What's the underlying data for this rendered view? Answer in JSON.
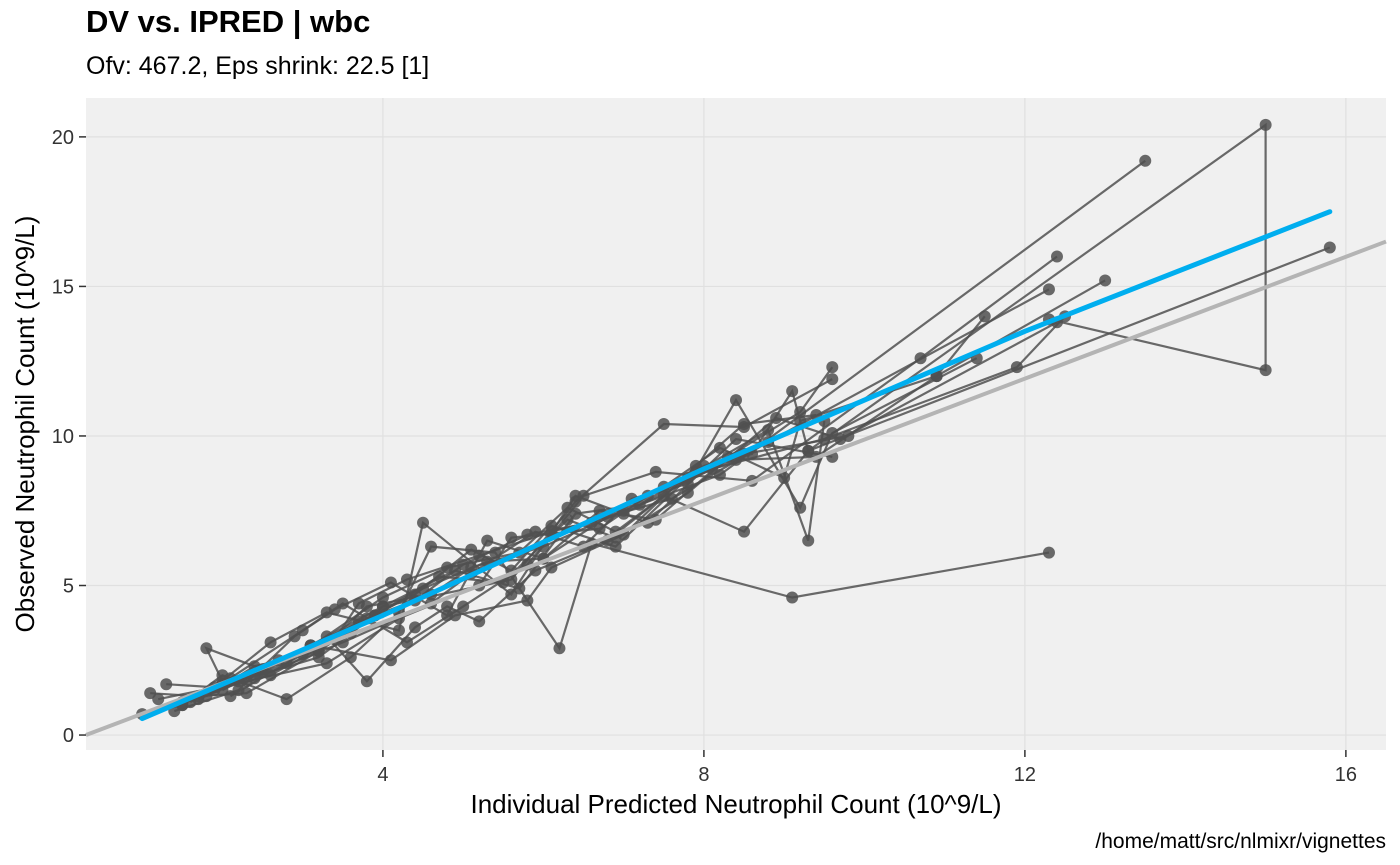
{
  "header": {
    "title": "DV vs. IPRED | wbc",
    "subtitle": "Ofv: 467.2, Eps shrink: 22.5 [1]",
    "caption": "/home/matt/src/nlmixr/vignettes"
  },
  "colors": {
    "panel_bg": "#f0f0f0",
    "grid": "#e0e0e0",
    "points": "#505050",
    "trend": "#00aeef",
    "identity": "#b4b4b4"
  },
  "chart_data": {
    "type": "scatter",
    "title": "DV vs. IPRED | wbc",
    "subtitle": "Ofv: 467.2, Eps shrink: 22.5 [1]",
    "xlabel": "Individual Predicted Neutrophil Count (10^9/L)",
    "ylabel": "Observed Neutrophil Count (10^9/L)",
    "xlim": [
      0.3,
      16.5
    ],
    "ylim": [
      -0.5,
      21.3
    ],
    "xticks": [
      4,
      8,
      12,
      16
    ],
    "yticks": [
      0,
      5,
      10,
      15,
      20
    ],
    "grid": true,
    "legend": "none",
    "subjects": [
      {
        "x": [
          1.5,
          2.0,
          1.8,
          2.5,
          3.1,
          4.0,
          5.6,
          6.4,
          7.5,
          8.5,
          9.6
        ],
        "y": [
          1.0,
          1.8,
          2.9,
          2.2,
          3.0,
          4.3,
          5.2,
          7.8,
          10.4,
          10.3,
          11.9
        ]
      },
      {
        "x": [
          1.1,
          1.7,
          2.3,
          3.2,
          3.8,
          4.6,
          5.1,
          6.0,
          7.0,
          8.2,
          13.5
        ],
        "y": [
          1.4,
          1.3,
          1.4,
          2.8,
          4.3,
          4.7,
          5.6,
          6.3,
          7.5,
          8.7,
          19.2
        ]
      },
      {
        "x": [
          1.0,
          1.5,
          2.0,
          2.8,
          3.6,
          4.2,
          4.6,
          5.4,
          6.2,
          6.6,
          9.1,
          12.3
        ],
        "y": [
          0.7,
          1.0,
          2.0,
          1.2,
          2.6,
          4.1,
          6.3,
          6.1,
          2.9,
          6.4,
          4.6,
          6.1
        ]
      },
      {
        "x": [
          1.3,
          1.9,
          2.6,
          3.3,
          4.2,
          4.5,
          5.6,
          6.4,
          7.3,
          8.4,
          9.6
        ],
        "y": [
          1.7,
          1.6,
          3.1,
          4.1,
          3.5,
          7.1,
          4.7,
          8.0,
          7.1,
          9.9,
          9.3
        ]
      },
      {
        "x": [
          1.6,
          2.1,
          3.0,
          3.5,
          4.3,
          5.0,
          5.8,
          6.5,
          7.4,
          8.6,
          10.7,
          12.4
        ],
        "y": [
          1.1,
          1.9,
          3.5,
          4.4,
          3.1,
          4.3,
          5.7,
          8.0,
          8.8,
          8.5,
          12.6,
          16.0
        ]
      },
      {
        "x": [
          1.8,
          2.4,
          3.2,
          3.8,
          4.4,
          5.1,
          5.6,
          6.1,
          6.9,
          7.8,
          8.5,
          9.8
        ],
        "y": [
          1.3,
          2.3,
          2.8,
          3.9,
          4.7,
          6.2,
          5.5,
          7.0,
          6.3,
          8.6,
          9.4,
          10.0
        ]
      },
      {
        "x": [
          1.4,
          2.2,
          2.9,
          3.4,
          4.1,
          4.8,
          5.3,
          6.0,
          6.8,
          7.6,
          8.8,
          12.3
        ],
        "y": [
          0.8,
          1.5,
          3.3,
          4.2,
          5.1,
          4.0,
          6.5,
          5.9,
          7.3,
          7.9,
          9.8,
          14.9
        ]
      },
      {
        "x": [
          1.7,
          2.5,
          3.1,
          3.9,
          4.7,
          5.5,
          6.3,
          6.9,
          7.8,
          8.9,
          9.7,
          12.4
        ],
        "y": [
          1.2,
          2.1,
          3.0,
          4.0,
          5.3,
          5.1,
          7.2,
          6.6,
          8.1,
          10.6,
          9.9,
          13.8
        ]
      },
      {
        "x": [
          2.0,
          2.7,
          3.6,
          4.0,
          4.9,
          5.7,
          6.4,
          7.2,
          8.0,
          8.6,
          9.1,
          9.3,
          15.8
        ],
        "y": [
          1.7,
          2.5,
          3.4,
          4.3,
          5.5,
          4.9,
          7.4,
          7.7,
          9.0,
          9.4,
          11.5,
          9.5,
          16.3
        ]
      },
      {
        "x": [
          2.1,
          3.0,
          3.7,
          4.4,
          5.0,
          5.8,
          6.6,
          7.5,
          8.2,
          9.0,
          9.2,
          10.9,
          13.0
        ],
        "y": [
          1.3,
          2.7,
          3.8,
          4.5,
          5.7,
          6.7,
          7.1,
          8.3,
          9.6,
          8.6,
          10.5,
          12.0,
          15.2
        ]
      },
      {
        "x": [
          1.2,
          2.3,
          3.3,
          4.2,
          5.2,
          5.6,
          6.7,
          7.3,
          8.4,
          9.4,
          10.9,
          11.5
        ],
        "y": [
          1.2,
          1.8,
          2.4,
          3.9,
          5.0,
          6.6,
          6.9,
          8.0,
          9.2,
          9.3,
          12.0,
          14.0
        ]
      },
      {
        "x": [
          1.9,
          2.6,
          3.4,
          3.7,
          4.3,
          5.2,
          6.1,
          7.0,
          8.1,
          9.5,
          11.9,
          12.5
        ],
        "y": [
          1.5,
          2.0,
          3.2,
          4.4,
          5.2,
          6.0,
          6.8,
          7.4,
          8.9,
          9.9,
          12.3,
          14.0
        ]
      },
      {
        "x": [
          2.2,
          3.2,
          3.9,
          4.5,
          5.3,
          6.0,
          6.7,
          7.4,
          8.3,
          9.2,
          9.6
        ],
        "y": [
          1.8,
          2.6,
          4.0,
          4.9,
          5.8,
          5.9,
          7.5,
          7.2,
          9.3,
          10.8,
          12.3
        ]
      },
      {
        "x": [
          2.4,
          3.5,
          4.6,
          5.1,
          5.9,
          6.5,
          7.1,
          7.8,
          8.4,
          9.2,
          9.6,
          11.4
        ],
        "y": [
          1.9,
          3.1,
          4.4,
          5.4,
          6.8,
          6.3,
          7.9,
          8.4,
          11.2,
          7.6,
          10.1,
          12.6
        ]
      },
      {
        "x": [
          1.5,
          2.8,
          4.0,
          4.8,
          5.7,
          6.3,
          6.9,
          7.9,
          8.8,
          9.3,
          9.5
        ],
        "y": [
          1.1,
          2.4,
          4.6,
          5.6,
          6.1,
          7.6,
          6.8,
          8.8,
          10.2,
          6.5,
          10.5
        ]
      },
      {
        "x": [
          3.3,
          3.8,
          4.4,
          4.8,
          5.2,
          5.9,
          6.8,
          7.5,
          8.5,
          9.3,
          15.0,
          15.0,
          12.3
        ],
        "y": [
          3.3,
          1.8,
          3.6,
          4.3,
          3.8,
          5.5,
          6.5,
          8.0,
          6.8,
          9.5,
          20.4,
          12.2,
          13.9
        ]
      },
      {
        "x": [
          2.0,
          3.1,
          4.1,
          4.9,
          5.8,
          6.1,
          7.0,
          7.9,
          8.5,
          9.4
        ],
        "y": [
          1.5,
          3.0,
          2.5,
          4.0,
          4.5,
          5.6,
          6.7,
          9.0,
          10.4,
          10.7
        ]
      }
    ],
    "trend": {
      "x": [
        1.0,
        4.0,
        8.0,
        12.0,
        15.8
      ],
      "y": [
        0.55,
        4.0,
        8.9,
        13.5,
        17.5
      ]
    },
    "identity": {
      "x": [
        0.3,
        16.5
      ],
      "y": [
        0.0,
        16.5
      ]
    }
  }
}
